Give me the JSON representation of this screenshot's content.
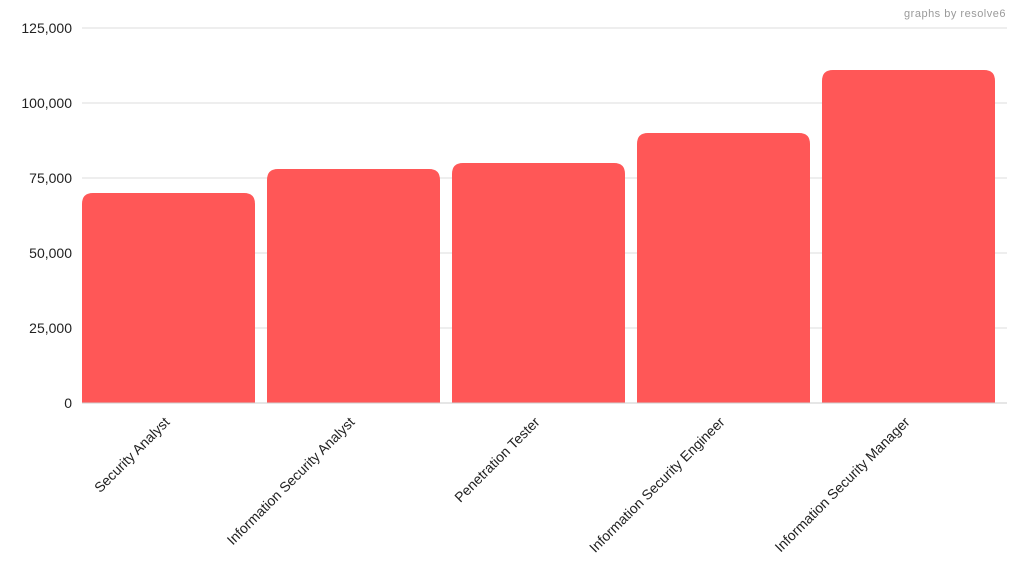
{
  "watermark": "graphs by resolve6",
  "colors": {
    "bar": "#ff5757",
    "grid": "#dddddd",
    "axis": "#cccccc",
    "text": "#222222",
    "watermark": "#9a9a9a"
  },
  "chart_data": {
    "type": "bar",
    "categories": [
      "Security Analyst",
      "Information Security Analyst",
      "Penetration Tester",
      "Information Security Engineer",
      "Information Security Manager"
    ],
    "values": [
      70000,
      78000,
      80000,
      90000,
      111000
    ],
    "ylim": [
      0,
      125000
    ],
    "yticks": [
      0,
      25000,
      50000,
      75000,
      100000,
      125000
    ],
    "ytick_labels": [
      "0",
      "25,000",
      "50,000",
      "75,000",
      "100,000",
      "125,000"
    ],
    "grid": true,
    "xlabel": "",
    "ylabel": "",
    "title": ""
  }
}
